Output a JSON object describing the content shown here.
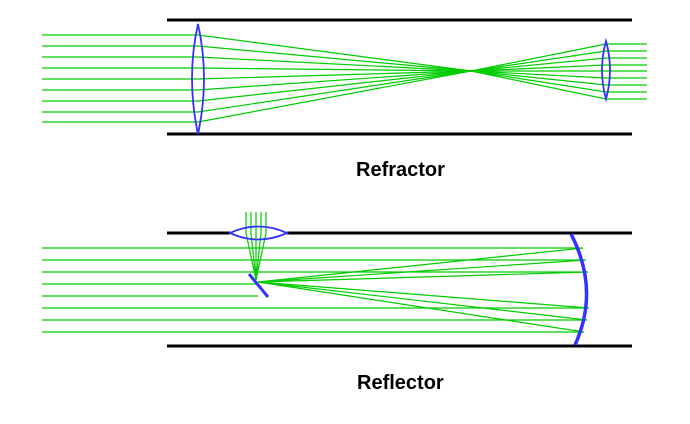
{
  "labels": {
    "refractor": "Refractor",
    "reflector": "Reflector"
  },
  "colors": {
    "tube": "#000000",
    "ray": "#00cc00",
    "optic": "#3333ff"
  }
}
